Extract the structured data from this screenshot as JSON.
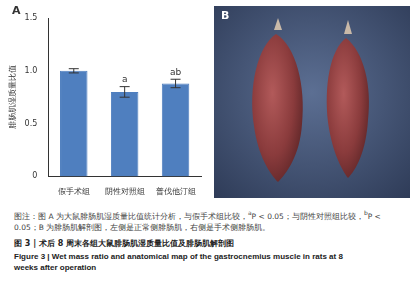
{
  "panel_labels": [
    "A",
    "B"
  ],
  "chart_data": {
    "type": "bar",
    "y_label": "腓肠肌湿质量比值",
    "categories": [
      "假手术组",
      "阴性对照组",
      "普伐他汀组"
    ],
    "values": [
      1.0,
      0.8,
      0.88
    ],
    "errors": [
      0.02,
      0.05,
      0.04
    ],
    "annotations": [
      null,
      "a",
      "ab"
    ],
    "color": "#4f7fbf",
    "ylim": [
      0,
      1.5
    ],
    "yticks": [
      0,
      0.5,
      {
        "value": 1,
        "label": "1.0"
      },
      1.5
    ],
    "grid": false
  },
  "caption": {
    "note": [
      {
        "text": "图注：图 A 为大鼠腓肠肌湿质量比值统计分析，与假手术组比较，"
      },
      {
        "text": "a",
        "sup": true
      },
      {
        "text": "P < 0.05；与阴性对照组比较，"
      },
      {
        "text": "b",
        "sup": true
      },
      {
        "text": "P < 0.05；B 为腓肠肌解剖图，左侧是正常侧腓肠肌，右侧是手术侧腓肠肌。"
      }
    ],
    "title_zh": "图 3 | 术后 8 周末各组大鼠腓肠肌湿质量比值及腓肠肌解剖图",
    "title_en": "Figure 3 | Wet mass ratio and anatomical map of the gastrocnemius muscle in rats at 8 weeks after operation"
  }
}
